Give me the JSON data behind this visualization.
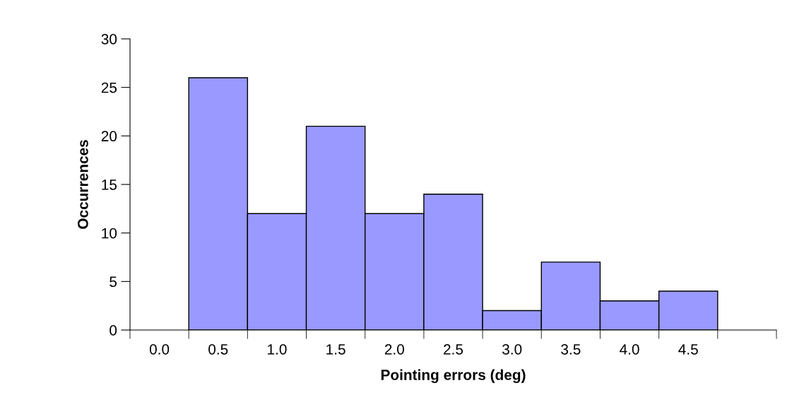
{
  "chart_data": {
    "type": "bar",
    "xlabel": "Pointing errors (deg)",
    "ylabel": "Occurrences",
    "categories": [
      "0.0",
      "0.5",
      "1.0",
      "1.5",
      "2.0",
      "2.5",
      "3.0",
      "3.5",
      "4.0",
      "4.5",
      null
    ],
    "values": [
      0,
      26,
      12,
      21,
      12,
      14,
      2,
      7,
      3,
      4,
      0
    ],
    "color": "#9999ff",
    "ylim": [
      0,
      30
    ],
    "yticks": [
      0,
      5,
      10,
      15,
      20,
      25,
      30
    ],
    "grid": false,
    "legend": false
  }
}
